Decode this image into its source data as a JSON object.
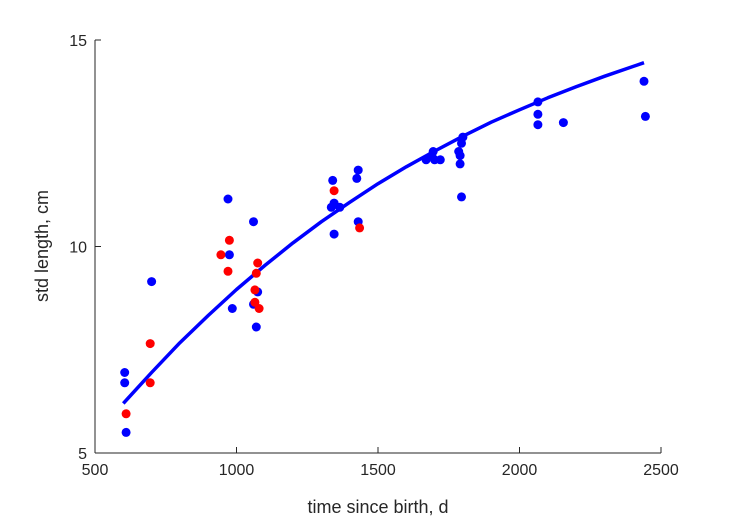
{
  "chart_data": {
    "type": "scatter",
    "title": "",
    "xlabel": "time since birth, d",
    "ylabel": "std length, cm",
    "xlim": [
      500,
      2500
    ],
    "ylim": [
      5,
      15
    ],
    "xticks": [
      500,
      1000,
      1500,
      2000,
      2500
    ],
    "yticks": [
      5,
      10,
      15
    ],
    "grid": false,
    "series": [
      {
        "kind": "scatter",
        "color": "#0000ff",
        "points": [
          [
            605,
            6.95
          ],
          [
            605,
            6.7
          ],
          [
            610,
            5.5
          ],
          [
            700,
            9.15
          ],
          [
            970,
            11.15
          ],
          [
            975,
            9.8
          ],
          [
            985,
            8.5
          ],
          [
            1060,
            10.6
          ],
          [
            1060,
            8.6
          ],
          [
            1070,
            8.05
          ],
          [
            1075,
            8.9
          ],
          [
            1335,
            10.95
          ],
          [
            1340,
            11.6
          ],
          [
            1345,
            11.05
          ],
          [
            1345,
            10.3
          ],
          [
            1365,
            10.95
          ],
          [
            1425,
            11.65
          ],
          [
            1430,
            11.85
          ],
          [
            1430,
            10.6
          ],
          [
            1670,
            12.1
          ],
          [
            1690,
            12.2
          ],
          [
            1695,
            12.3
          ],
          [
            1700,
            12.1
          ],
          [
            1720,
            12.1
          ],
          [
            1785,
            12.3
          ],
          [
            1790,
            12.2
          ],
          [
            1790,
            12.0
          ],
          [
            1795,
            12.5
          ],
          [
            1795,
            11.2
          ],
          [
            1800,
            12.65
          ],
          [
            2065,
            13.5
          ],
          [
            2065,
            13.2
          ],
          [
            2065,
            12.95
          ],
          [
            2155,
            13.0
          ],
          [
            2440,
            14.0
          ],
          [
            2445,
            13.15
          ]
        ]
      },
      {
        "kind": "scatter",
        "color": "#ff0000",
        "points": [
          [
            610,
            5.95
          ],
          [
            695,
            6.7
          ],
          [
            695,
            7.65
          ],
          [
            945,
            9.8
          ],
          [
            970,
            9.4
          ],
          [
            975,
            10.15
          ],
          [
            1065,
            8.95
          ],
          [
            1065,
            8.65
          ],
          [
            1070,
            9.35
          ],
          [
            1075,
            9.6
          ],
          [
            1080,
            8.5
          ],
          [
            1345,
            11.35
          ],
          [
            1435,
            10.45
          ]
        ]
      },
      {
        "kind": "line",
        "color": "#0000ff",
        "x": [
          600,
          700,
          800,
          900,
          1000,
          1100,
          1200,
          1300,
          1400,
          1500,
          1600,
          1700,
          1800,
          1900,
          2000,
          2100,
          2200,
          2300,
          2440
        ],
        "y": [
          6.2,
          6.95,
          7.67,
          8.33,
          8.96,
          9.54,
          10.09,
          10.6,
          11.07,
          11.52,
          11.93,
          12.31,
          12.67,
          13.01,
          13.31,
          13.6,
          13.87,
          14.12,
          14.45
        ]
      }
    ]
  }
}
